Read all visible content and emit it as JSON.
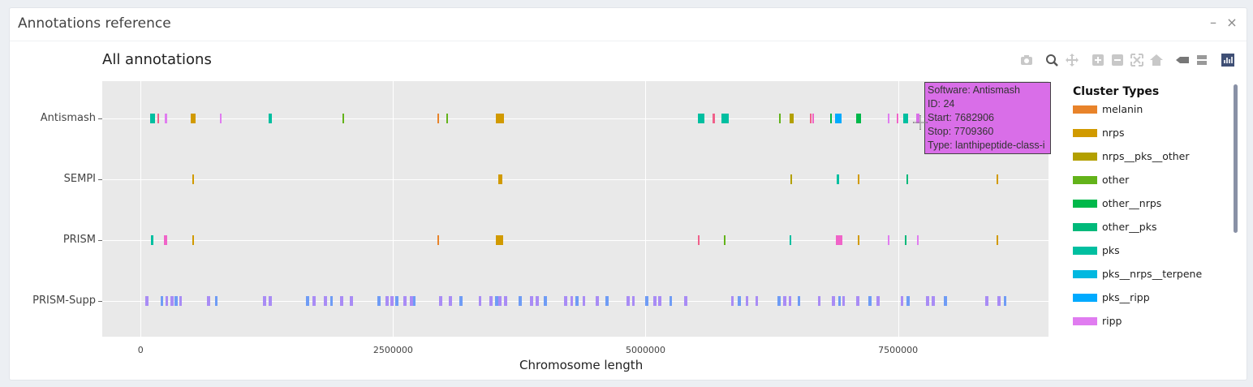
{
  "panel": {
    "title": "Annotations reference",
    "minimize_icon": "minus-icon",
    "close_icon": "close-icon"
  },
  "plot": {
    "title": "All annotations"
  },
  "modebar": [
    "camera-icon",
    "zoom-icon",
    "pan-icon",
    "zoom-in-icon",
    "zoom-out-icon",
    "autoscale-icon",
    "home-icon",
    "hover-closest-icon",
    "hover-compare-icon",
    "plotly-logo-icon"
  ],
  "tooltip": {
    "software": "Software: Antismash",
    "id": "ID: 24",
    "start": "Start: 7682906",
    "stop": "Stop: 7709360",
    "type": "Type: lanthipeptide-class-i",
    "color": "#d96ee8"
  },
  "legend": {
    "title": "Cluster Types",
    "items": [
      {
        "label": "melanin",
        "color": "#e8832a"
      },
      {
        "label": "nrps",
        "color": "#d19a00"
      },
      {
        "label": "nrps__pks__other",
        "color": "#b3a000"
      },
      {
        "label": "other",
        "color": "#63b31a"
      },
      {
        "label": "other__nrps",
        "color": "#00b84a"
      },
      {
        "label": "other__pks",
        "color": "#00b97a"
      },
      {
        "label": "pks",
        "color": "#00bfa0"
      },
      {
        "label": "pks__nrps__terpene",
        "color": "#00b8e0"
      },
      {
        "label": "pks__ripp",
        "color": "#00aaff"
      },
      {
        "label": "ripp",
        "color": "#e07cf0"
      }
    ]
  },
  "chart_data": {
    "type": "bar",
    "title": "All annotations",
    "xlabel": "Chromosome length",
    "ylabel": "",
    "xlim": [
      -380000,
      8990000
    ],
    "xticks": [
      0,
      2500000,
      5000000,
      7500000
    ],
    "xtick_labels": [
      "0",
      "2500000",
      "5000000",
      "7500000"
    ],
    "categories": [
      "Antismash",
      "SEMPI",
      "PRISM",
      "PRISM-Supp"
    ],
    "series": [
      {
        "row": "Antismash",
        "start": 95000,
        "stop": 145000,
        "color": "#00bfa0"
      },
      {
        "row": "Antismash",
        "start": 165000,
        "stop": 185000,
        "color": "#f0608a"
      },
      {
        "row": "Antismash",
        "start": 240000,
        "stop": 260000,
        "color": "#e07cf0"
      },
      {
        "row": "Antismash",
        "start": 495000,
        "stop": 545000,
        "color": "#d19a00"
      },
      {
        "row": "Antismash",
        "start": 785000,
        "stop": 800000,
        "color": "#e07cf0"
      },
      {
        "row": "Antismash",
        "start": 1270000,
        "stop": 1300000,
        "color": "#00bfa0"
      },
      {
        "row": "Antismash",
        "start": 1995000,
        "stop": 2010000,
        "color": "#63b31a"
      },
      {
        "row": "Antismash",
        "start": 2935000,
        "stop": 2950000,
        "color": "#e8832a"
      },
      {
        "row": "Antismash",
        "start": 3025000,
        "stop": 3040000,
        "color": "#63b31a"
      },
      {
        "row": "Antismash",
        "start": 3520000,
        "stop": 3600000,
        "color": "#d19a00"
      },
      {
        "row": "Antismash",
        "start": 5515000,
        "stop": 5585000,
        "color": "#00bfa0"
      },
      {
        "row": "Antismash",
        "start": 5665000,
        "stop": 5685000,
        "color": "#f0608a"
      },
      {
        "row": "Antismash",
        "start": 5755000,
        "stop": 5825000,
        "color": "#00bfa0"
      },
      {
        "row": "Antismash",
        "start": 6325000,
        "stop": 6340000,
        "color": "#63b31a"
      },
      {
        "row": "Antismash",
        "start": 6425000,
        "stop": 6465000,
        "color": "#b3a000"
      },
      {
        "row": "Antismash",
        "start": 6625000,
        "stop": 6640000,
        "color": "#f0608a"
      },
      {
        "row": "Antismash",
        "start": 6655000,
        "stop": 6670000,
        "color": "#f064c8"
      },
      {
        "row": "Antismash",
        "start": 6825000,
        "stop": 6840000,
        "color": "#00b84a"
      },
      {
        "row": "Antismash",
        "start": 6880000,
        "stop": 6940000,
        "color": "#00aaff"
      },
      {
        "row": "Antismash",
        "start": 7085000,
        "stop": 7135000,
        "color": "#00b84a"
      },
      {
        "row": "Antismash",
        "start": 7395000,
        "stop": 7410000,
        "color": "#e07cf0"
      },
      {
        "row": "Antismash",
        "start": 7485000,
        "stop": 7500000,
        "color": "#f064c8"
      },
      {
        "row": "Antismash",
        "start": 7555000,
        "stop": 7600000,
        "color": "#00bfa0"
      },
      {
        "row": "Antismash",
        "start": 7682906,
        "stop": 7709360,
        "color": "#d96ee8"
      },
      {
        "row": "SEMPI",
        "start": 510000,
        "stop": 525000,
        "color": "#d19a00"
      },
      {
        "row": "SEMPI",
        "start": 3545000,
        "stop": 3580000,
        "color": "#d19a00"
      },
      {
        "row": "SEMPI",
        "start": 6435000,
        "stop": 6450000,
        "color": "#b3a000"
      },
      {
        "row": "SEMPI",
        "start": 6895000,
        "stop": 6920000,
        "color": "#00bfa0"
      },
      {
        "row": "SEMPI",
        "start": 7100000,
        "stop": 7115000,
        "color": "#d19a00"
      },
      {
        "row": "SEMPI",
        "start": 7580000,
        "stop": 7595000,
        "color": "#00b97a"
      },
      {
        "row": "SEMPI",
        "start": 8475000,
        "stop": 8495000,
        "color": "#d19a00"
      },
      {
        "row": "PRISM",
        "start": 105000,
        "stop": 130000,
        "color": "#00bfa0"
      },
      {
        "row": "PRISM",
        "start": 230000,
        "stop": 260000,
        "color": "#f064c8"
      },
      {
        "row": "PRISM",
        "start": 510000,
        "stop": 530000,
        "color": "#d19a00"
      },
      {
        "row": "PRISM",
        "start": 2935000,
        "stop": 2950000,
        "color": "#e8832a"
      },
      {
        "row": "PRISM",
        "start": 3520000,
        "stop": 3590000,
        "color": "#d19a00"
      },
      {
        "row": "PRISM",
        "start": 5515000,
        "stop": 5535000,
        "color": "#f0608a"
      },
      {
        "row": "PRISM",
        "start": 5775000,
        "stop": 5790000,
        "color": "#63b31a"
      },
      {
        "row": "PRISM",
        "start": 6425000,
        "stop": 6445000,
        "color": "#00bfa0"
      },
      {
        "row": "PRISM",
        "start": 6885000,
        "stop": 6945000,
        "color": "#f064c8"
      },
      {
        "row": "PRISM",
        "start": 7100000,
        "stop": 7115000,
        "color": "#d19a00"
      },
      {
        "row": "PRISM",
        "start": 7395000,
        "stop": 7410000,
        "color": "#e07cf0"
      },
      {
        "row": "PRISM",
        "start": 7570000,
        "stop": 7585000,
        "color": "#00b97a"
      },
      {
        "row": "PRISM",
        "start": 7685000,
        "stop": 7700000,
        "color": "#e07cf0"
      },
      {
        "row": "PRISM",
        "start": 8475000,
        "stop": 8495000,
        "color": "#d19a00"
      }
    ],
    "prism_supp": {
      "row": "PRISM-Supp",
      "colors": [
        "#a98cf5",
        "#6f9cf5"
      ],
      "starts": [
        45000,
        195000,
        245000,
        295000,
        335000,
        380000,
        660000,
        735000,
        1210000,
        1270000,
        1640000,
        1705000,
        1815000,
        1875000,
        1975000,
        2075000,
        2345000,
        2425000,
        2475000,
        2525000,
        2600000,
        2665000,
        2695000,
        2955000,
        3055000,
        3155000,
        3345000,
        3455000,
        3510000,
        3545000,
        3600000,
        3745000,
        3855000,
        3915000,
        3990000,
        4195000,
        4255000,
        4305000,
        4375000,
        4505000,
        4605000,
        4815000,
        4865000,
        4995000,
        5075000,
        5125000,
        5235000,
        5385000,
        5845000,
        5915000,
        5990000,
        6085000,
        6305000,
        6365000,
        6415000,
        6505000,
        6705000,
        6845000,
        6905000,
        6945000,
        7085000,
        7205000,
        7285000,
        7525000,
        7585000,
        7775000,
        7835000,
        7955000,
        8365000,
        8485000,
        8545000
      ]
    }
  }
}
